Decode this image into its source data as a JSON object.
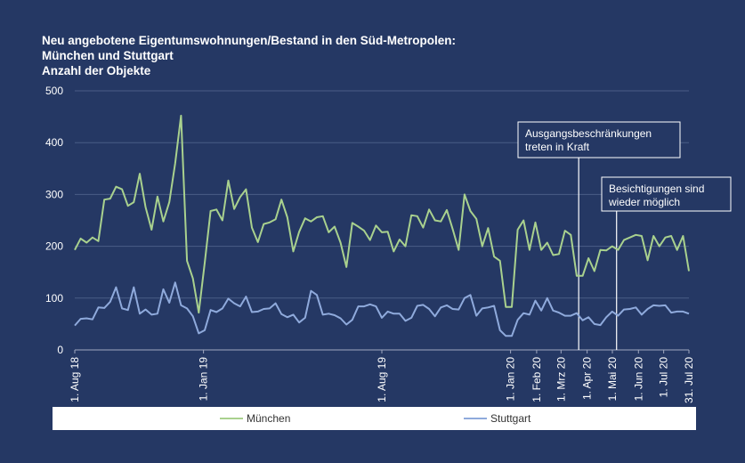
{
  "chart_data": {
    "type": "line",
    "title": "Neu angebotene Eigentumswohnungen/Bestand in den Süd-Metropolen:",
    "subtitle": "München und Stuttgart",
    "ylabel": "Anzahl der Objekte",
    "ylim": [
      0,
      500
    ],
    "yticks": [
      0,
      100,
      200,
      300,
      400,
      500
    ],
    "grid": true,
    "legend_position": "bottom",
    "x_start": "2018-08-01",
    "x_end": "2020-07-31",
    "xtick_labels": [
      {
        "date": "2018-08-01",
        "label": "1. Aug 18"
      },
      {
        "date": "2019-01-01",
        "label": "1. Jan 19"
      },
      {
        "date": "2019-08-01",
        "label": "1. Aug 19"
      },
      {
        "date": "2020-01-01",
        "label": "1. Jan 20"
      },
      {
        "date": "2020-02-01",
        "label": "1. Feb 20"
      },
      {
        "date": "2020-03-01",
        "label": "1. Mrz 20"
      },
      {
        "date": "2020-04-01",
        "label": "1. Apr 20"
      },
      {
        "date": "2020-05-01",
        "label": "1. Mai 20"
      },
      {
        "date": "2020-06-01",
        "label": "1. Jun 20"
      },
      {
        "date": "2020-07-01",
        "label": "1. Jul 20"
      },
      {
        "date": "2020-07-31",
        "label": "31. Jul 20"
      }
    ],
    "series": [
      {
        "name": "München",
        "color": "#a9d18e",
        "values": [
          193,
          215,
          207,
          217,
          210,
          290,
          292,
          315,
          310,
          278,
          285,
          340,
          275,
          232,
          296,
          248,
          285,
          360,
          452,
          172,
          138,
          72,
          168,
          268,
          271,
          250,
          327,
          272,
          295,
          310,
          236,
          208,
          243,
          246,
          252,
          290,
          256,
          190,
          228,
          254,
          248,
          256,
          258,
          227,
          238,
          207,
          160,
          245,
          238,
          230,
          212,
          240,
          227,
          228,
          190,
          213,
          200,
          260,
          258,
          236,
          271,
          250,
          248,
          270,
          233,
          193,
          300,
          268,
          253,
          200,
          235,
          180,
          172,
          83,
          83,
          232,
          250,
          193,
          246,
          193,
          207,
          183,
          185,
          230,
          222,
          143,
          143,
          177,
          152,
          193,
          192,
          200,
          193,
          212,
          217,
          222,
          220,
          173,
          220,
          200,
          217,
          220,
          193,
          220,
          152
        ]
      },
      {
        "name": "Stuttgart",
        "color": "#8faadc",
        "values": [
          47,
          60,
          61,
          59,
          82,
          81,
          93,
          121,
          80,
          77,
          121,
          70,
          78,
          68,
          70,
          117,
          91,
          130,
          86,
          80,
          65,
          32,
          38,
          77,
          73,
          80,
          99,
          90,
          84,
          103,
          73,
          74,
          79,
          80,
          90,
          69,
          63,
          68,
          53,
          62,
          114,
          106,
          68,
          70,
          67,
          61,
          49,
          58,
          84,
          84,
          88,
          84,
          62,
          74,
          70,
          70,
          56,
          62,
          85,
          87,
          79,
          65,
          82,
          86,
          79,
          78,
          100,
          106,
          66,
          80,
          82,
          85,
          38,
          27,
          27,
          58,
          71,
          68,
          95,
          76,
          100,
          76,
          72,
          66,
          66,
          71,
          57,
          63,
          50,
          48,
          63,
          74,
          66,
          78,
          79,
          82,
          68,
          79,
          86,
          85,
          86,
          72,
          74,
          74,
          70
        ]
      }
    ],
    "annotations": [
      {
        "date": "2020-03-22",
        "line1": "Ausgangsbeschränkungen",
        "line2": "treten in Kraft"
      },
      {
        "date": "2020-05-06",
        "line1": "Besichtigungen sind",
        "line2": "wieder möglich"
      }
    ]
  }
}
